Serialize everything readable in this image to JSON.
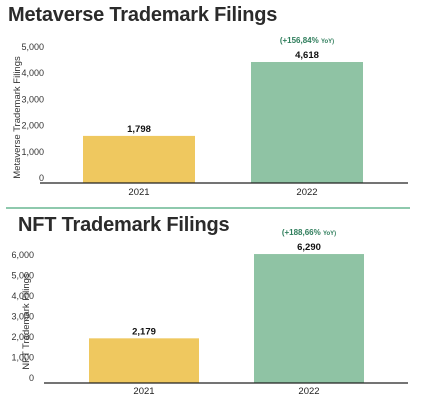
{
  "chart_data": [
    {
      "type": "bar",
      "title": "Metaverse Trademark Filings",
      "ylabel": "Metaverse Trademark Filings",
      "xlabel": "",
      "categories": [
        "2021",
        "2022"
      ],
      "values": [
        1798,
        4618
      ],
      "data_labels": [
        "1,798",
        "4,618"
      ],
      "bar_colors": [
        "#efc85f",
        "#8fc3a4"
      ],
      "ylim": [
        0,
        5000
      ],
      "yticks": [
        "0",
        "1,000",
        "2,000",
        "3,000",
        "4,000",
        "5,000"
      ],
      "grid": false,
      "annotation": {
        "text": "(+156,84%",
        "suffix": "YoY)",
        "category": "2022"
      }
    },
    {
      "type": "bar",
      "title": "NFT Trademark Filings",
      "ylabel": "NFT Trademark Filings",
      "xlabel": "",
      "categories": [
        "2021",
        "2022"
      ],
      "values": [
        2179,
        6290
      ],
      "data_labels": [
        "2,179",
        "6,290"
      ],
      "bar_colors": [
        "#efc85f",
        "#8fc3a4"
      ],
      "ylim": [
        0,
        6000
      ],
      "yticks": [
        "0",
        "1,000",
        "2,000",
        "3,000",
        "4,000",
        "5,000",
        "6,000"
      ],
      "grid": false,
      "annotation": {
        "text": "(+188,66%",
        "suffix": "YoY)",
        "category": "2022"
      }
    }
  ]
}
